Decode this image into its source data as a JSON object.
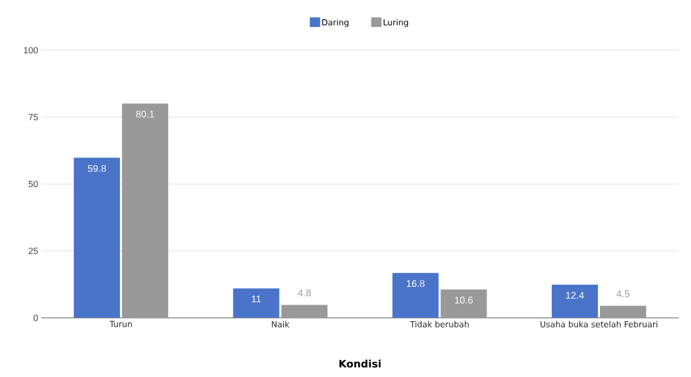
{
  "chart_data": {
    "type": "bar",
    "xlabel": "Kondisi",
    "categories": [
      "Turun",
      "Naik",
      "Tidak berubah",
      "Usaha buka setelah Februari"
    ],
    "series": [
      {
        "name": "Daring",
        "color": "#4a74c9",
        "values": [
          59.8,
          11,
          16.8,
          12.4
        ]
      },
      {
        "name": "Luring",
        "color": "#999999",
        "values": [
          80.1,
          4.8,
          10.6,
          4.5
        ]
      }
    ],
    "ylim": [
      0,
      100
    ],
    "yticks": [
      0,
      25,
      50,
      75,
      100
    ],
    "grid": "y",
    "legend": "top",
    "data_labels": true
  }
}
